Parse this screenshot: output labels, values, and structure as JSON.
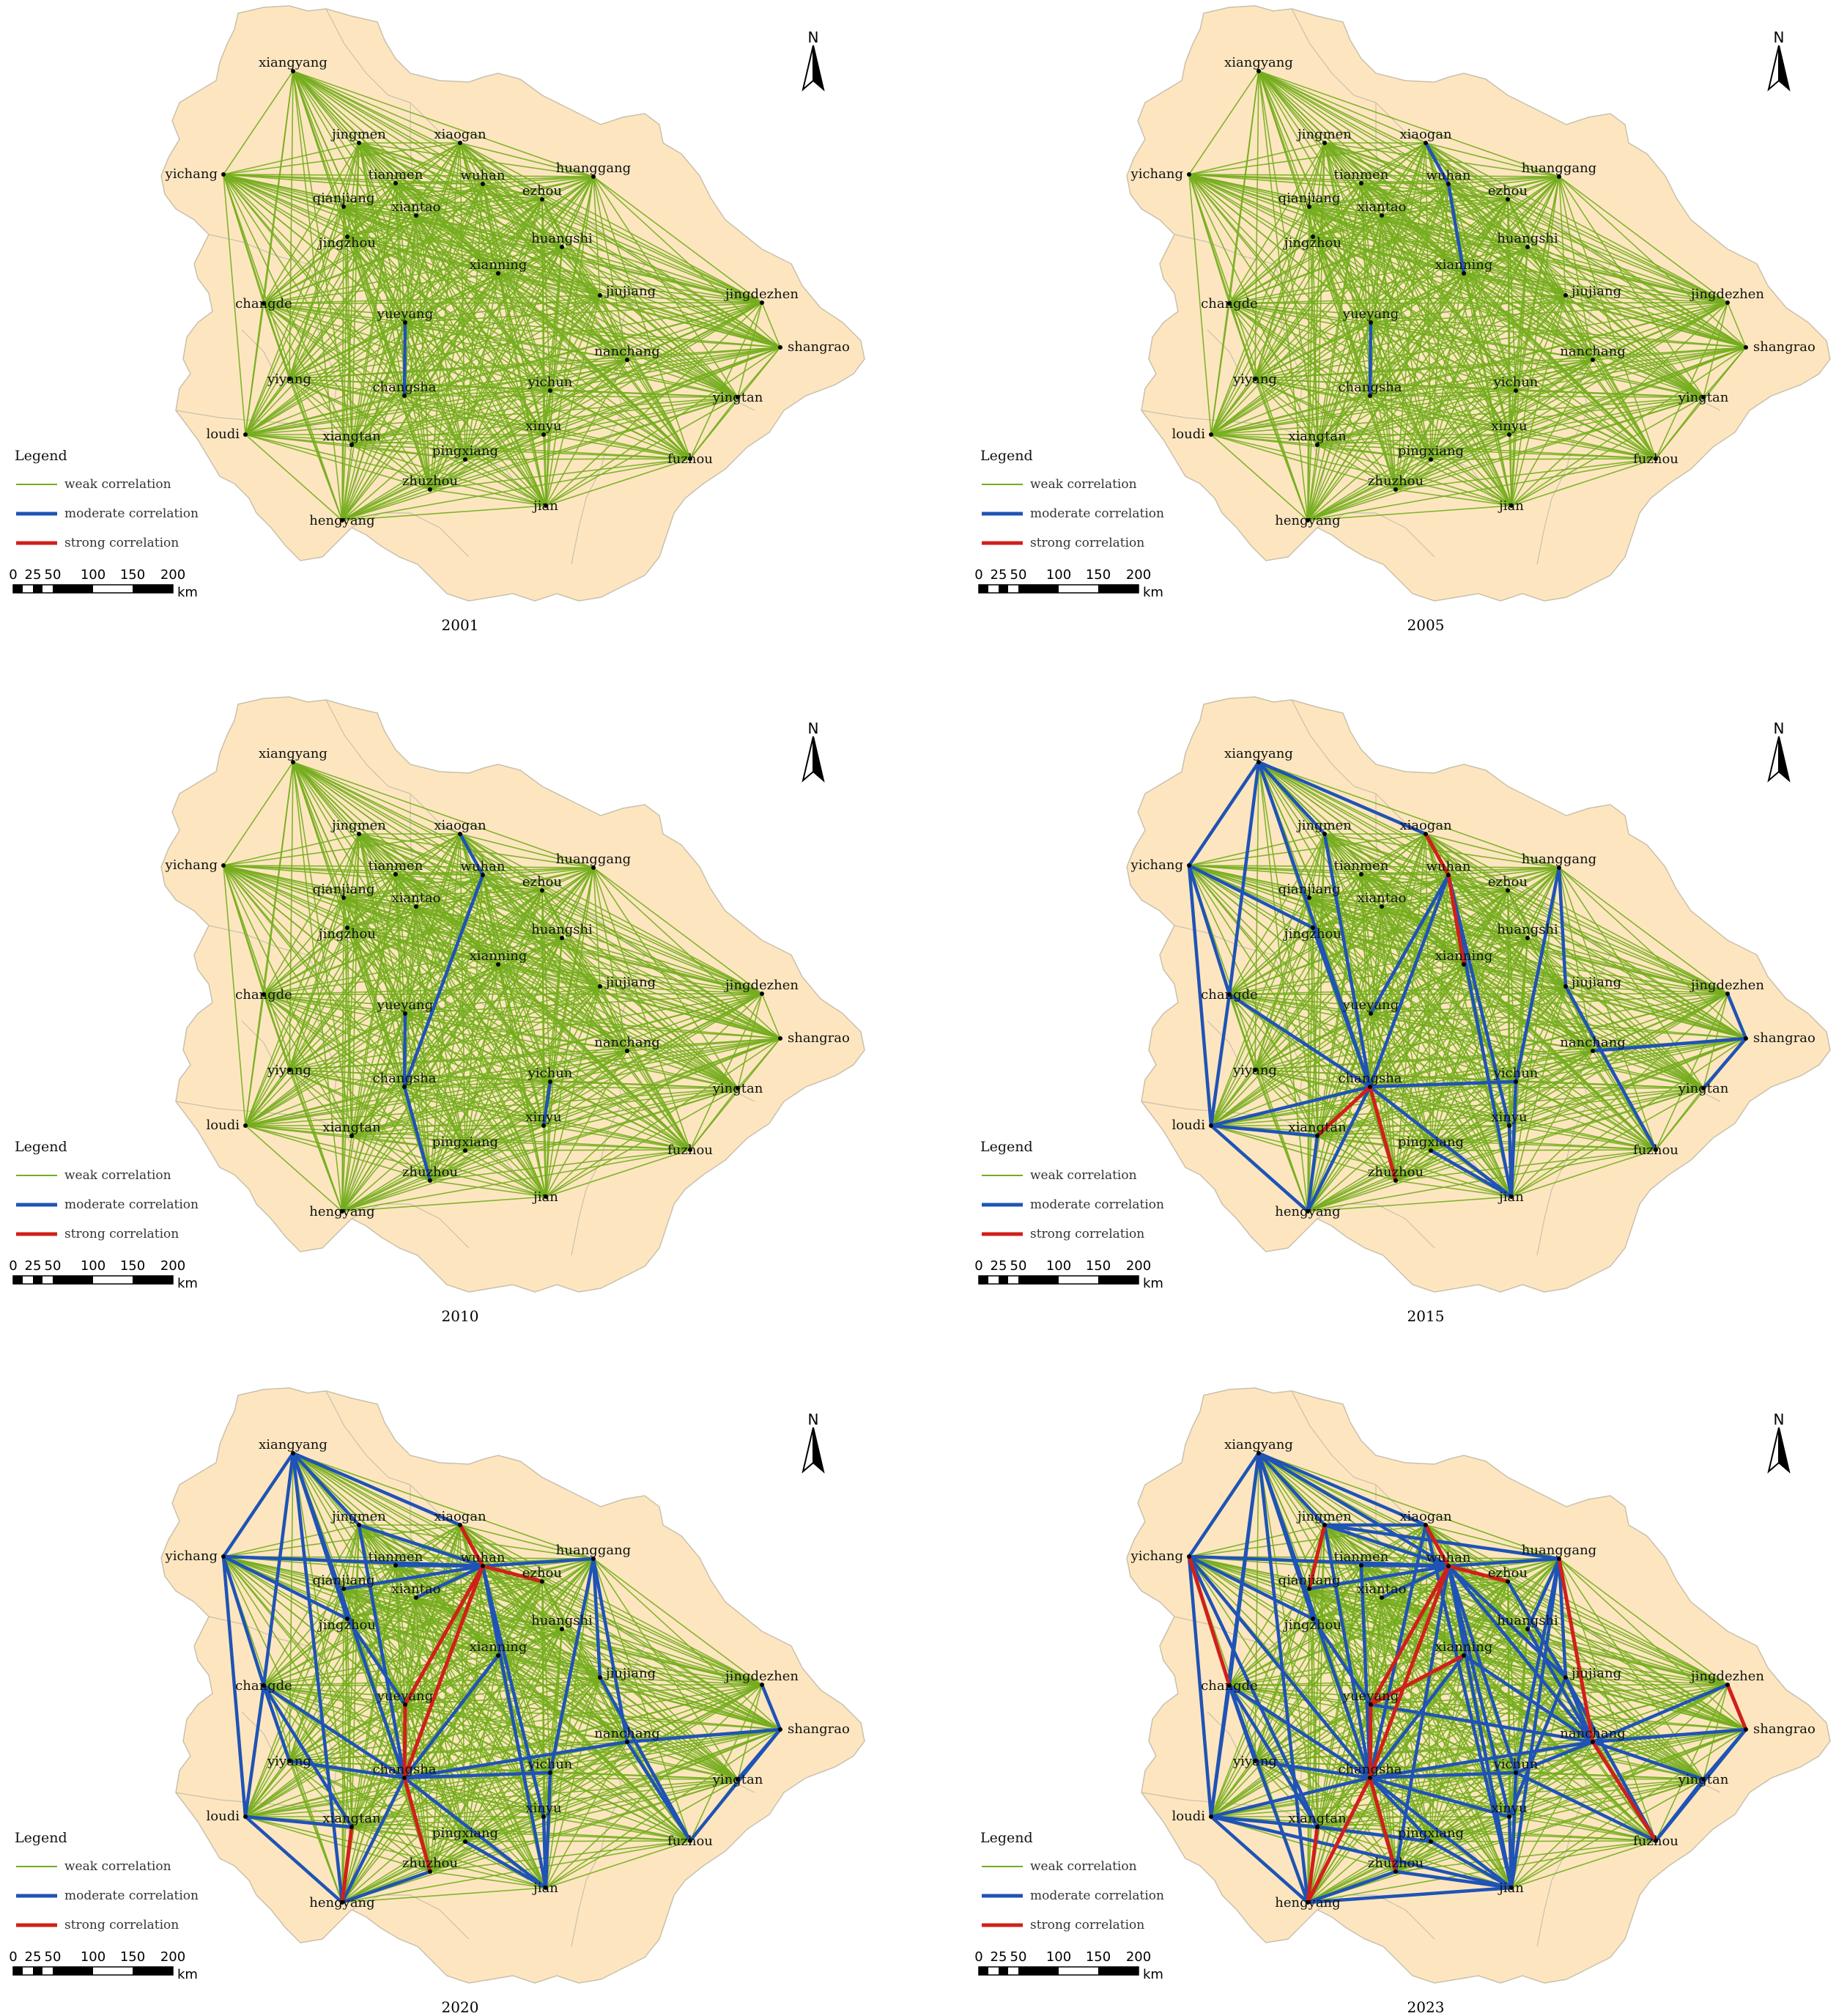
{
  "colors": {
    "land": "#fde6bf",
    "land_border": "#c9c0ad",
    "weak": "#74ad1e",
    "moderate": "#1f53b5",
    "strong": "#d0201a"
  },
  "legend": {
    "title": "Legend",
    "items": [
      {
        "label": "weak correlation",
        "level": "weak"
      },
      {
        "label": "moderate correlation",
        "level": "moderate"
      },
      {
        "label": "strong correlation",
        "level": "strong"
      }
    ]
  },
  "scale_bar": {
    "ticks": [
      "0",
      "25",
      "50",
      "100",
      "150",
      "200"
    ],
    "unit": "km"
  },
  "north_arrow": "N",
  "cities": [
    "xiangyang",
    "jingmen",
    "xiaogan",
    "yichang",
    "tianmen",
    "wuhan",
    "huanggang",
    "qianjiang",
    "xiantao",
    "ezhou",
    "jingzhou",
    "huangshi",
    "xianning",
    "jiujiang",
    "jingdezhen",
    "changde",
    "yueyang",
    "shangrao",
    "nanchang",
    "yiyang",
    "changsha",
    "yichun",
    "yingtan",
    "loudi",
    "xiangtan",
    "xinyu",
    "pingxiang",
    "fuzhou",
    "zhuzhou",
    "jian",
    "hengyang"
  ],
  "panels": [
    {
      "year": "2001",
      "moderate": [
        [
          "yueyang",
          "changsha"
        ]
      ],
      "strong": []
    },
    {
      "year": "2005",
      "moderate": [
        [
          "xiaogan",
          "wuhan"
        ],
        [
          "wuhan",
          "xianning"
        ],
        [
          "yueyang",
          "changsha"
        ]
      ],
      "strong": []
    },
    {
      "year": "2010",
      "moderate": [
        [
          "xiaogan",
          "wuhan"
        ],
        [
          "wuhan",
          "changsha"
        ],
        [
          "changsha",
          "zhuzhou"
        ],
        [
          "yichun",
          "xinyu"
        ],
        [
          "yueyang",
          "changsha"
        ]
      ],
      "strong": []
    },
    {
      "year": "2015",
      "moderate": [
        [
          "xiangyang",
          "yichang"
        ],
        [
          "xiangyang",
          "jingmen"
        ],
        [
          "xiangyang",
          "xiaogan"
        ],
        [
          "xiangyang",
          "changde"
        ],
        [
          "xiangyang",
          "changsha"
        ],
        [
          "yichang",
          "changde"
        ],
        [
          "yichang",
          "loudi"
        ],
        [
          "yichang",
          "jingzhou"
        ],
        [
          "jingmen",
          "changsha"
        ],
        [
          "changde",
          "loudi"
        ],
        [
          "changde",
          "changsha"
        ],
        [
          "loudi",
          "hengyang"
        ],
        [
          "loudi",
          "xiangtan"
        ],
        [
          "xiangtan",
          "hengyang"
        ],
        [
          "changsha",
          "hengyang"
        ],
        [
          "changsha",
          "wuhan"
        ],
        [
          "changsha",
          "yichun"
        ],
        [
          "changsha",
          "jian"
        ],
        [
          "wuhan",
          "xinyu"
        ],
        [
          "wuhan",
          "yueyang"
        ],
        [
          "wuhan",
          "jian"
        ],
        [
          "huanggang",
          "jiujiang"
        ],
        [
          "huanggang",
          "yichun"
        ],
        [
          "jiujiang",
          "fuzhou"
        ],
        [
          "nanchang",
          "shangrao"
        ],
        [
          "shangrao",
          "jingdezhen"
        ],
        [
          "shangrao",
          "yingtan"
        ],
        [
          "yichun",
          "jian"
        ],
        [
          "xinyu",
          "jian"
        ],
        [
          "pingxiang",
          "jian"
        ],
        [
          "changsha",
          "loudi"
        ],
        [
          "jingzhou",
          "changsha"
        ]
      ],
      "strong": [
        [
          "xiaogan",
          "wuhan"
        ],
        [
          "changsha",
          "zhuzhou"
        ],
        [
          "changsha",
          "xiangtan"
        ],
        [
          "wuhan",
          "xianning"
        ]
      ]
    },
    {
      "year": "2020",
      "moderate": [
        [
          "xiangyang",
          "yichang"
        ],
        [
          "xiangyang",
          "jingmen"
        ],
        [
          "xiangyang",
          "xiaogan"
        ],
        [
          "xiangyang",
          "changde"
        ],
        [
          "xiangyang",
          "changsha"
        ],
        [
          "xiangyang",
          "jingzhou"
        ],
        [
          "xiangyang",
          "hengyang"
        ],
        [
          "yichang",
          "changde"
        ],
        [
          "yichang",
          "loudi"
        ],
        [
          "yichang",
          "wuhan"
        ],
        [
          "yichang",
          "jingzhou"
        ],
        [
          "jingmen",
          "changsha"
        ],
        [
          "jingmen",
          "wuhan"
        ],
        [
          "changde",
          "loudi"
        ],
        [
          "changde",
          "changsha"
        ],
        [
          "changde",
          "xiangtan"
        ],
        [
          "changde",
          "yiyang"
        ],
        [
          "loudi",
          "hengyang"
        ],
        [
          "loudi",
          "xiangtan"
        ],
        [
          "xiangtan",
          "hengyang"
        ],
        [
          "changsha",
          "hengyang"
        ],
        [
          "changsha",
          "yichun"
        ],
        [
          "changsha",
          "jian"
        ],
        [
          "changsha",
          "nanchang"
        ],
        [
          "wuhan",
          "xinyu"
        ],
        [
          "wuhan",
          "yueyang"
        ],
        [
          "wuhan",
          "jian"
        ],
        [
          "wuhan",
          "huanggang"
        ],
        [
          "wuhan",
          "tianmen"
        ],
        [
          "huanggang",
          "jiujiang"
        ],
        [
          "huanggang",
          "yichun"
        ],
        [
          "huanggang",
          "nanchang"
        ],
        [
          "jiujiang",
          "fuzhou"
        ],
        [
          "nanchang",
          "shangrao"
        ],
        [
          "nanchang",
          "fuzhou"
        ],
        [
          "shangrao",
          "jingdezhen"
        ],
        [
          "shangrao",
          "yingtan"
        ],
        [
          "shangrao",
          "fuzhou"
        ],
        [
          "yichun",
          "jian"
        ],
        [
          "xinyu",
          "jian"
        ],
        [
          "pingxiang",
          "jian"
        ],
        [
          "zhuzhou",
          "hengyang"
        ],
        [
          "yueyang",
          "jingzhou"
        ],
        [
          "xianning",
          "changsha"
        ],
        [
          "xiantao",
          "wuhan"
        ],
        [
          "yiyang",
          "changsha"
        ],
        [
          "qianjiang",
          "wuhan"
        ]
      ],
      "strong": [
        [
          "xiaogan",
          "wuhan"
        ],
        [
          "changsha",
          "zhuzhou"
        ],
        [
          "xiangtan",
          "hengyang"
        ],
        [
          "wuhan",
          "changsha"
        ],
        [
          "wuhan",
          "yueyang"
        ],
        [
          "wuhan",
          "ezhou"
        ],
        [
          "yueyang",
          "changsha"
        ]
      ]
    },
    {
      "year": "2023",
      "moderate": [
        [
          "xiangyang",
          "yichang"
        ],
        [
          "xiangyang",
          "jingmen"
        ],
        [
          "xiangyang",
          "xiaogan"
        ],
        [
          "xiangyang",
          "changde"
        ],
        [
          "xiangyang",
          "changsha"
        ],
        [
          "xiangyang",
          "jingzhou"
        ],
        [
          "xiangyang",
          "hengyang"
        ],
        [
          "xiangyang",
          "loudi"
        ],
        [
          "xiangyang",
          "wuhan"
        ],
        [
          "yichang",
          "changde"
        ],
        [
          "yichang",
          "loudi"
        ],
        [
          "yichang",
          "wuhan"
        ],
        [
          "yichang",
          "jingzhou"
        ],
        [
          "yichang",
          "changsha"
        ],
        [
          "yichang",
          "xiangtan"
        ],
        [
          "jingmen",
          "changsha"
        ],
        [
          "jingmen",
          "wuhan"
        ],
        [
          "jingmen",
          "xiaogan"
        ],
        [
          "jingmen",
          "huanggang"
        ],
        [
          "changde",
          "loudi"
        ],
        [
          "changde",
          "changsha"
        ],
        [
          "changde",
          "xiangtan"
        ],
        [
          "changde",
          "yiyang"
        ],
        [
          "changde",
          "hengyang"
        ],
        [
          "loudi",
          "hengyang"
        ],
        [
          "loudi",
          "xiangtan"
        ],
        [
          "loudi",
          "changsha"
        ],
        [
          "changsha",
          "hengyang"
        ],
        [
          "changsha",
          "yichun"
        ],
        [
          "changsha",
          "jian"
        ],
        [
          "changsha",
          "nanchang"
        ],
        [
          "changsha",
          "pingxiang"
        ],
        [
          "changsha",
          "xinyu"
        ],
        [
          "wuhan",
          "xinyu"
        ],
        [
          "wuhan",
          "jian"
        ],
        [
          "wuhan",
          "huanggang"
        ],
        [
          "wuhan",
          "tianmen"
        ],
        [
          "wuhan",
          "jiujiang"
        ],
        [
          "wuhan",
          "nanchang"
        ],
        [
          "wuhan",
          "yichun"
        ],
        [
          "wuhan",
          "zhuzhou"
        ],
        [
          "huanggang",
          "jiujiang"
        ],
        [
          "huanggang",
          "yichun"
        ],
        [
          "huanggang",
          "nanchang"
        ],
        [
          "huanggang",
          "jian"
        ],
        [
          "huanggang",
          "huangshi"
        ],
        [
          "jiujiang",
          "fuzhou"
        ],
        [
          "jiujiang",
          "nanchang"
        ],
        [
          "jiujiang",
          "xinyu"
        ],
        [
          "nanchang",
          "shangrao"
        ],
        [
          "nanchang",
          "yingtan"
        ],
        [
          "nanchang",
          "jingdezhen"
        ],
        [
          "nanchang",
          "yichun"
        ],
        [
          "shangrao",
          "yingtan"
        ],
        [
          "shangrao",
          "fuzhou"
        ],
        [
          "yichun",
          "jian"
        ],
        [
          "yichun",
          "fuzhou"
        ],
        [
          "xinyu",
          "jian"
        ],
        [
          "pingxiang",
          "jian"
        ],
        [
          "zhuzhou",
          "hengyang"
        ],
        [
          "zhuzhou",
          "jian"
        ],
        [
          "yueyang",
          "jingzhou"
        ],
        [
          "yueyang",
          "nanchang"
        ],
        [
          "xianning",
          "changsha"
        ],
        [
          "xianning",
          "nanchang"
        ],
        [
          "xiantao",
          "wuhan"
        ],
        [
          "yiyang",
          "changsha"
        ],
        [
          "qianjiang",
          "wuhan"
        ],
        [
          "tianmen",
          "changsha"
        ],
        [
          "xiaogan",
          "changsha"
        ],
        [
          "xiaogan",
          "jian"
        ],
        [
          "ezhou",
          "jiujiang"
        ],
        [
          "huangshi",
          "nanchang"
        ],
        [
          "pingxiang",
          "xiangtan"
        ],
        [
          "yingtan",
          "fuzhou"
        ],
        [
          "hengyang",
          "jian"
        ],
        [
          "loudi",
          "jian"
        ]
      ],
      "strong": [
        [
          "xiaogan",
          "wuhan"
        ],
        [
          "changsha",
          "zhuzhou"
        ],
        [
          "xiangtan",
          "hengyang"
        ],
        [
          "wuhan",
          "changsha"
        ],
        [
          "wuhan",
          "yueyang"
        ],
        [
          "wuhan",
          "ezhou"
        ],
        [
          "yueyang",
          "changsha"
        ],
        [
          "yichang",
          "changde"
        ],
        [
          "jingdezhen",
          "shangrao"
        ],
        [
          "huanggang",
          "nanchang"
        ],
        [
          "nanchang",
          "fuzhou"
        ],
        [
          "changsha",
          "hengyang"
        ],
        [
          "xianning",
          "yueyang"
        ],
        [
          "jingmen",
          "qianjiang"
        ]
      ]
    }
  ]
}
